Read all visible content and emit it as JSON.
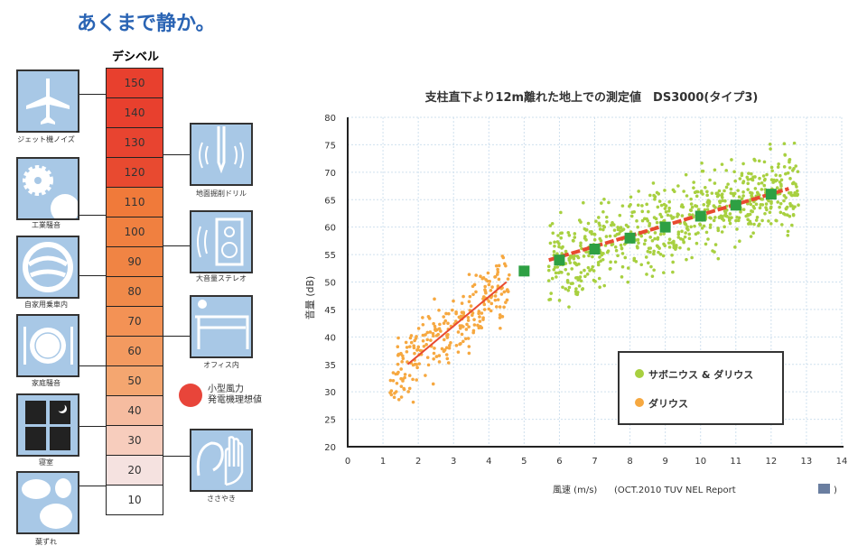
{
  "headline": "あくまで静か。",
  "decibel": {
    "title": "デシベル",
    "levels": [
      {
        "value": "150",
        "color": "#e8402e"
      },
      {
        "value": "140",
        "color": "#e8402e"
      },
      {
        "value": "130",
        "color": "#e84430"
      },
      {
        "value": "120",
        "color": "#e84a30"
      },
      {
        "value": "110",
        "color": "#f07a3a"
      },
      {
        "value": "100",
        "color": "#f08040"
      },
      {
        "value": "90",
        "color": "#f08444"
      },
      {
        "value": "80",
        "color": "#f08a4a"
      },
      {
        "value": "70",
        "color": "#f39255"
      },
      {
        "value": "60",
        "color": "#f39a60"
      },
      {
        "value": "50",
        "color": "#f4a670"
      },
      {
        "value": "40",
        "color": "#f6bca0"
      },
      {
        "value": "30",
        "color": "#f7cdbd"
      },
      {
        "value": "20",
        "color": "#f5e2e0"
      },
      {
        "value": "10",
        "color": "#ffffff"
      }
    ],
    "examples_left": [
      "ジェット機ノイズ",
      "工業騒音",
      "自家用乗車内",
      "家庭騒音",
      "寝室",
      "葉ずれ"
    ],
    "examples_right": [
      "地面掘削ドリル",
      "大音量ステレオ",
      "オフィス内",
      "ささやき"
    ],
    "marker": {
      "label_line1": "小型風力",
      "label_line2": "発電機理想値",
      "color": "#e8453a"
    }
  },
  "chart_data": {
    "type": "scatter",
    "title": "支柱直下より12m離れた地上での測定値　DS3000(タイプ3)",
    "xlabel": "風速 (m/s)",
    "source": "(OCT.2010 TUV NEL Report",
    "source_close": ")",
    "ylabel": "音量 (dB)",
    "xlim": [
      0,
      14
    ],
    "ylim": [
      20,
      80
    ],
    "xticks": [
      "0",
      "1",
      "2",
      "3",
      "4",
      "5",
      "6",
      "7",
      "8",
      "9",
      "10",
      "11",
      "12",
      "13",
      "14"
    ],
    "yticks": [
      "20",
      "25",
      "30",
      "35",
      "40",
      "45",
      "50",
      "55",
      "60",
      "65",
      "70",
      "75",
      "80"
    ],
    "grid": true,
    "legend": {
      "position": "bottom-right",
      "entries": [
        {
          "label": "サボニウス & ダリウス",
          "color": "#a8d040"
        },
        {
          "label": "ダリウス",
          "color": "#f6a840"
        }
      ]
    },
    "series": [
      {
        "name": "サボニウス & ダリウス",
        "color": "#a8d040",
        "x_range": [
          5.7,
          12.8
        ],
        "y_center_fit": [
          [
            6,
            54
          ],
          [
            12.5,
            67
          ]
        ],
        "spread": 7
      },
      {
        "name": "ダリウス",
        "color": "#f6a840",
        "x_range": [
          1.2,
          4.6
        ],
        "y_center_fit": [
          [
            1.7,
            35
          ],
          [
            4.5,
            50
          ]
        ],
        "spread": 6
      }
    ],
    "averages": {
      "color": "#2ea043",
      "x": [
        5,
        6,
        7,
        8,
        9,
        10,
        11,
        12
      ],
      "y": [
        52,
        54,
        56,
        58,
        60,
        62,
        64,
        66
      ]
    },
    "fit_lines": [
      {
        "color": "#e84a30",
        "style": "solid",
        "points": [
          [
            1.7,
            35
          ],
          [
            4.5,
            50
          ]
        ]
      },
      {
        "color": "#e84a30",
        "style": "dashed",
        "points": [
          [
            5.7,
            54
          ],
          [
            12.5,
            67
          ]
        ]
      }
    ]
  }
}
